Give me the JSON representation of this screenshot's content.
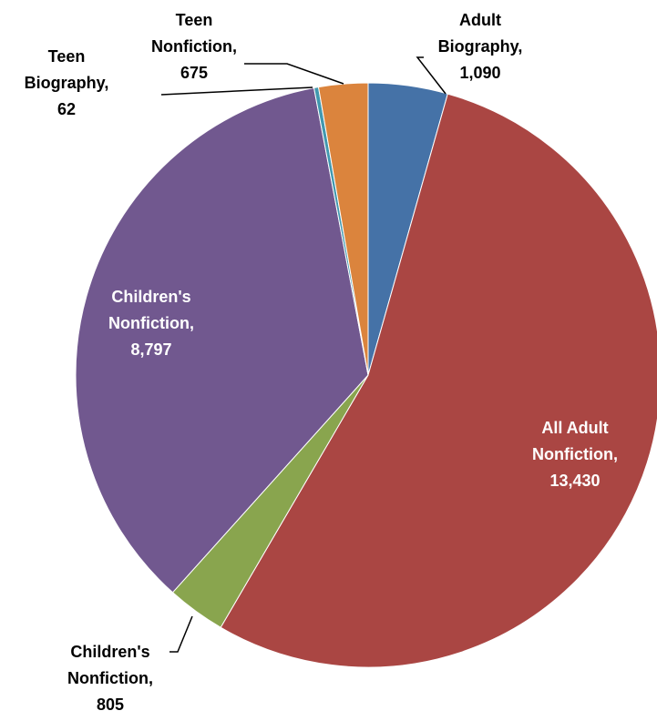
{
  "chart_data": {
    "type": "pie",
    "title": "",
    "slices": [
      {
        "label": [
          "Adult",
          "Biography,",
          "1,090"
        ],
        "value": 1090,
        "color": "#4572a7"
      },
      {
        "label": [
          "All Adult",
          "Nonfiction,",
          "13,430"
        ],
        "value": 13430,
        "color": "#aa4643"
      },
      {
        "label": [
          "Children's",
          "Nonfiction,",
          "805"
        ],
        "value": 805,
        "color": "#89a54e"
      },
      {
        "label": [
          "Children's",
          "Nonfiction,",
          "8,797"
        ],
        "value": 8797,
        "color": "#71588f"
      },
      {
        "label": [
          "Teen",
          "Biography,",
          "62"
        ],
        "value": 62,
        "color": "#4198af"
      },
      {
        "label": [
          "Teen",
          "Nonfiction,",
          "675"
        ],
        "value": 675,
        "color": "#db843d"
      }
    ],
    "label_text_colors": {
      "outside": "#000000",
      "inside": "#ffffff"
    },
    "leader_line_color": "#000000"
  }
}
